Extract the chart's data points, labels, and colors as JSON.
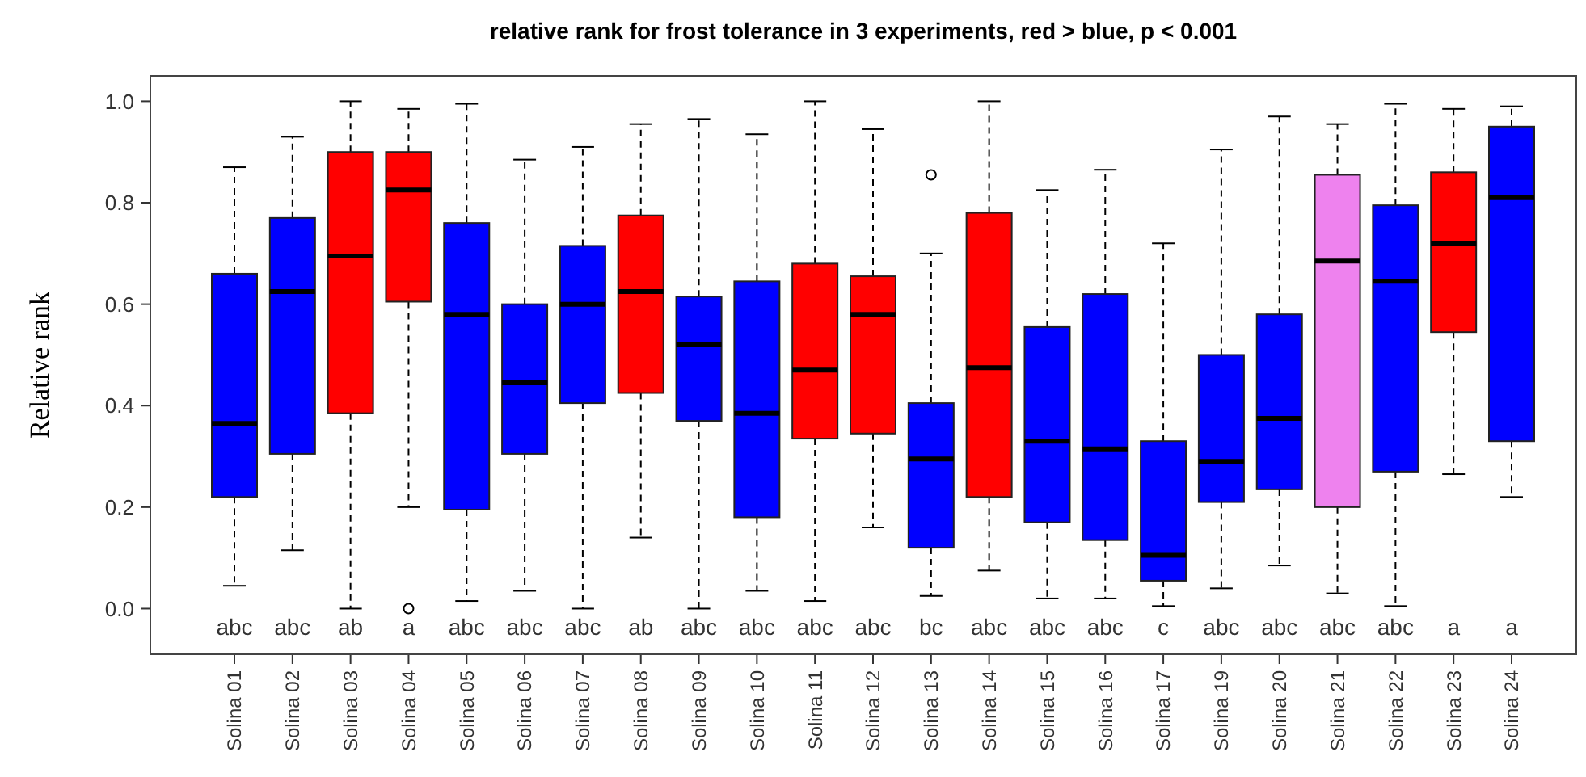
{
  "chart_data": {
    "type": "box",
    "title": "relative rank for frost tolerance in 3 experiments, red > blue, p < 0.001",
    "ylabel": "Relative rank",
    "categories": [
      "Solina 01",
      "Solina 02",
      "Solina 03",
      "Solina 04",
      "Solina 05",
      "Solina 06",
      "Solina 07",
      "Solina 08",
      "Solina 09",
      "Solina 10",
      "Solina 11",
      "Solina 12",
      "Solina 13",
      "Solina 14",
      "Solina 15",
      "Solina 16",
      "Solina 17",
      "Solina 19",
      "Solina 20",
      "Solina 21",
      "Solina 22",
      "Solina 23",
      "Solina 24"
    ],
    "boxes": [
      {
        "low": 0.045,
        "q1": 0.22,
        "median": 0.365,
        "q3": 0.66,
        "high": 0.87
      },
      {
        "low": 0.115,
        "q1": 0.305,
        "median": 0.625,
        "q3": 0.77,
        "high": 0.93
      },
      {
        "low": 0.0,
        "q1": 0.385,
        "median": 0.695,
        "q3": 0.9,
        "high": 1.0
      },
      {
        "low": 0.2,
        "q1": 0.605,
        "median": 0.825,
        "q3": 0.9,
        "high": 0.985,
        "outliers": [
          0.0
        ]
      },
      {
        "low": 0.015,
        "q1": 0.195,
        "median": 0.58,
        "q3": 0.76,
        "high": 0.995
      },
      {
        "low": 0.035,
        "q1": 0.305,
        "median": 0.445,
        "q3": 0.6,
        "high": 0.885
      },
      {
        "low": 0.0,
        "q1": 0.405,
        "median": 0.6,
        "q3": 0.715,
        "high": 0.91
      },
      {
        "low": 0.14,
        "q1": 0.425,
        "median": 0.625,
        "q3": 0.775,
        "high": 0.955
      },
      {
        "low": 0.0,
        "q1": 0.37,
        "median": 0.52,
        "q3": 0.615,
        "high": 0.965
      },
      {
        "low": 0.035,
        "q1": 0.18,
        "median": 0.385,
        "q3": 0.645,
        "high": 0.935
      },
      {
        "low": 0.015,
        "q1": 0.335,
        "median": 0.47,
        "q3": 0.68,
        "high": 1.0
      },
      {
        "low": 0.16,
        "q1": 0.345,
        "median": 0.58,
        "q3": 0.655,
        "high": 0.945
      },
      {
        "low": 0.025,
        "q1": 0.12,
        "median": 0.295,
        "q3": 0.405,
        "high": 0.7,
        "outliers": [
          0.855
        ]
      },
      {
        "low": 0.075,
        "q1": 0.22,
        "median": 0.475,
        "q3": 0.78,
        "high": 1.0
      },
      {
        "low": 0.02,
        "q1": 0.17,
        "median": 0.33,
        "q3": 0.555,
        "high": 0.825
      },
      {
        "low": 0.02,
        "q1": 0.135,
        "median": 0.315,
        "q3": 0.62,
        "high": 0.865
      },
      {
        "low": 0.005,
        "q1": 0.055,
        "median": 0.105,
        "q3": 0.33,
        "high": 0.72
      },
      {
        "low": 0.04,
        "q1": 0.21,
        "median": 0.29,
        "q3": 0.5,
        "high": 0.905
      },
      {
        "low": 0.085,
        "q1": 0.235,
        "median": 0.375,
        "q3": 0.58,
        "high": 0.97
      },
      {
        "low": 0.03,
        "q1": 0.2,
        "median": 0.685,
        "q3": 0.855,
        "high": 0.955
      },
      {
        "low": 0.005,
        "q1": 0.27,
        "median": 0.645,
        "q3": 0.795,
        "high": 0.995
      },
      {
        "low": 0.265,
        "q1": 0.545,
        "median": 0.72,
        "q3": 0.86,
        "high": 0.985
      },
      {
        "low": 0.22,
        "q1": 0.33,
        "median": 0.81,
        "q3": 0.95,
        "high": 0.99
      }
    ],
    "colors": [
      "#0000ff",
      "#0000ff",
      "#ff0000",
      "#ff0000",
      "#0000ff",
      "#0000ff",
      "#0000ff",
      "#ff0000",
      "#0000ff",
      "#0000ff",
      "#ff0000",
      "#ff0000",
      "#0000ff",
      "#ff0000",
      "#0000ff",
      "#0000ff",
      "#0000ff",
      "#0000ff",
      "#0000ff",
      "#ee82ee",
      "#0000ff",
      "#ff0000",
      "#0000ff"
    ],
    "annotations": [
      "abc",
      "abc",
      "ab",
      "a",
      "abc",
      "abc",
      "abc",
      "ab",
      "abc",
      "abc",
      "abc",
      "abc",
      "bc",
      "abc",
      "abc",
      "abc",
      "c",
      "abc",
      "abc",
      "abc",
      "abc",
      "a",
      "a"
    ],
    "ylim": [
      -0.09,
      1.05
    ],
    "yticks": [
      {
        "value": 0,
        "label": "0.0"
      },
      {
        "value": 0.2,
        "label": "0.2"
      },
      {
        "value": 0.4,
        "label": "0.4"
      },
      {
        "value": 0.6,
        "label": "0.6"
      },
      {
        "value": 0.8,
        "label": "0.8"
      },
      {
        "value": 1,
        "label": "1.0"
      }
    ],
    "grid": false
  }
}
